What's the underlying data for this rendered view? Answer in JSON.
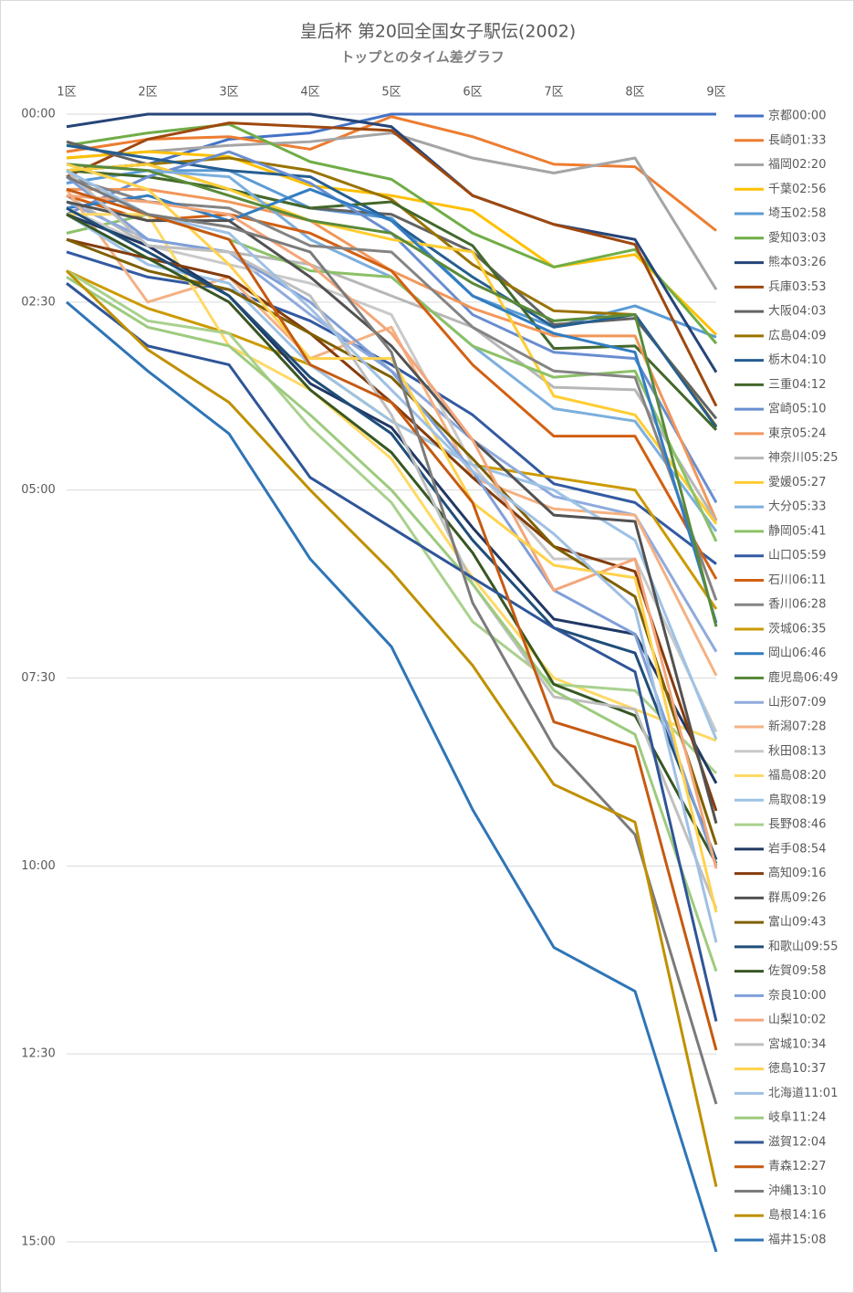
{
  "chart_data": {
    "type": "line",
    "title": "皇后杯 第20回全国女子駅伝(2002)",
    "subtitle": "トップとのタイム差グラフ",
    "categories": [
      "1区",
      "2区",
      "3区",
      "4区",
      "5区",
      "6区",
      "7区",
      "8区",
      "9区"
    ],
    "ylim": [
      0,
      900
    ],
    "y_reversed": true,
    "yticks": [
      {
        "value": 0,
        "label": "00:00"
      },
      {
        "value": 150,
        "label": "02:30"
      },
      {
        "value": 300,
        "label": "05:00"
      },
      {
        "value": 450,
        "label": "07:30"
      },
      {
        "value": 600,
        "label": "10:00"
      },
      {
        "value": 750,
        "label": "12:30"
      },
      {
        "value": 900,
        "label": "15:00"
      }
    ],
    "grid": true,
    "legend": "right",
    "series": [
      {
        "name": "京都00:00",
        "color": "#4472c4",
        "values": [
          45,
          40,
          20,
          15,
          0,
          0,
          0,
          0,
          0
        ]
      },
      {
        "name": "長崎01:33",
        "color": "#ed7d31",
        "values": [
          30,
          20,
          18,
          28,
          2,
          18,
          40,
          42,
          93
        ]
      },
      {
        "name": "福岡02:20",
        "color": "#a5a5a5",
        "values": [
          35,
          30,
          25,
          22,
          15,
          35,
          47,
          35,
          140
        ]
      },
      {
        "name": "千葉02:56",
        "color": "#ffc000",
        "values": [
          35,
          30,
          34,
          57,
          65,
          77,
          122,
          112,
          176
        ]
      },
      {
        "name": "埼玉02:58",
        "color": "#5b9bd5",
        "values": [
          55,
          45,
          45,
          75,
          83,
          145,
          170,
          153,
          178
        ]
      },
      {
        "name": "愛知03:03",
        "color": "#70ad47",
        "values": [
          25,
          15,
          8,
          38,
          52,
          95,
          122,
          108,
          183
        ]
      },
      {
        "name": "熊本03:26",
        "color": "#264478",
        "values": [
          10,
          0,
          0,
          0,
          10,
          65,
          88,
          100,
          206
        ]
      },
      {
        "name": "兵庫03:53",
        "color": "#9e480e",
        "values": [
          50,
          20,
          7,
          10,
          13,
          65,
          88,
          104,
          233
        ]
      },
      {
        "name": "大阪04:03",
        "color": "#636363",
        "values": [
          22,
          40,
          60,
          75,
          80,
          110,
          168,
          163,
          243
        ]
      },
      {
        "name": "広島04:09",
        "color": "#997300",
        "values": [
          45,
          40,
          35,
          45,
          68,
          120,
          157,
          160,
          249
        ]
      },
      {
        "name": "栃木04:10",
        "color": "#255e91",
        "values": [
          25,
          35,
          45,
          50,
          85,
          130,
          170,
          160,
          250
        ]
      },
      {
        "name": "三重04:12",
        "color": "#43682b",
        "values": [
          45,
          50,
          60,
          75,
          70,
          105,
          187,
          185,
          252
        ]
      },
      {
        "name": "宮崎05:10",
        "color": "#698ed0",
        "values": [
          80,
          50,
          30,
          55,
          95,
          160,
          190,
          195,
          310
        ]
      },
      {
        "name": "東京05:24",
        "color": "#f1975a",
        "values": [
          60,
          60,
          70,
          85,
          125,
          155,
          177,
          177,
          324
        ]
      },
      {
        "name": "神奈川05:25",
        "color": "#b7b7b7",
        "values": [
          65,
          105,
          110,
          120,
          145,
          170,
          218,
          220,
          325
        ]
      },
      {
        "name": "愛媛05:27",
        "color": "#ffcd33",
        "values": [
          45,
          40,
          60,
          85,
          100,
          110,
          225,
          240,
          327
        ]
      },
      {
        "name": "大分05:33",
        "color": "#7cafdd",
        "values": [
          40,
          45,
          50,
          100,
          130,
          185,
          235,
          245,
          333
        ]
      },
      {
        "name": "静岡05:41",
        "color": "#8cc168",
        "values": [
          95,
          80,
          100,
          125,
          130,
          185,
          210,
          205,
          341
        ]
      },
      {
        "name": "山口05:59",
        "color": "#335aa1",
        "values": [
          110,
          130,
          140,
          165,
          200,
          240,
          295,
          310,
          359
        ]
      },
      {
        "name": "石川06:11",
        "color": "#d26012",
        "values": [
          65,
          85,
          80,
          95,
          125,
          200,
          257,
          257,
          371
        ]
      },
      {
        "name": "香川06:28",
        "color": "#848484",
        "values": [
          50,
          70,
          75,
          105,
          110,
          170,
          205,
          210,
          388
        ]
      },
      {
        "name": "茨城06:35",
        "color": "#cc9a00",
        "values": [
          125,
          155,
          175,
          200,
          245,
          280,
          290,
          300,
          395
        ]
      },
      {
        "name": "岡山06:46",
        "color": "#327dc2",
        "values": [
          75,
          65,
          85,
          60,
          85,
          145,
          175,
          190,
          406
        ]
      },
      {
        "name": "鹿児島06:49",
        "color": "#5a8a39",
        "values": [
          40,
          45,
          65,
          85,
          95,
          135,
          165,
          160,
          409
        ]
      },
      {
        "name": "山形07:09",
        "color": "#8faadc",
        "values": [
          70,
          100,
          110,
          160,
          205,
          260,
          305,
          320,
          429
        ]
      },
      {
        "name": "新潟07:28",
        "color": "#f4b183",
        "values": [
          60,
          150,
          130,
          195,
          170,
          290,
          315,
          320,
          448
        ]
      },
      {
        "name": "秋田08:13",
        "color": "#c9c9c9",
        "values": [
          75,
          105,
          120,
          135,
          160,
          280,
          355,
          355,
          493
        ]
      },
      {
        "name": "福島08:20",
        "color": "#ffd966",
        "values": [
          80,
          80,
          185,
          220,
          275,
          370,
          450,
          475,
          500
        ]
      },
      {
        "name": "鳥取08:19",
        "color": "#9dc3e6",
        "values": [
          80,
          120,
          135,
          200,
          245,
          280,
          300,
          340,
          499
        ]
      },
      {
        "name": "長野08:46",
        "color": "#a9d18e",
        "values": [
          125,
          165,
          175,
          250,
          310,
          405,
          455,
          460,
          526
        ]
      },
      {
        "name": "岩手08:54",
        "color": "#203864",
        "values": [
          80,
          105,
          145,
          215,
          250,
          330,
          403,
          415,
          534
        ]
      },
      {
        "name": "高知09:16",
        "color": "#843c0c",
        "values": [
          100,
          115,
          130,
          175,
          230,
          290,
          345,
          365,
          556
        ]
      },
      {
        "name": "群馬09:26",
        "color": "#525252",
        "values": [
          70,
          85,
          85,
          130,
          185,
          260,
          320,
          325,
          566
        ]
      },
      {
        "name": "富山09:43",
        "color": "#7f6000",
        "values": [
          100,
          125,
          140,
          175,
          210,
          275,
          345,
          385,
          583
        ]
      },
      {
        "name": "和歌山09:55",
        "color": "#1f4e79",
        "values": [
          75,
          110,
          145,
          210,
          255,
          340,
          410,
          430,
          595
        ]
      },
      {
        "name": "佐賀09:58",
        "color": "#385723",
        "values": [
          80,
          115,
          150,
          220,
          270,
          350,
          455,
          480,
          598
        ]
      },
      {
        "name": "奈良10:00",
        "color": "#7f9fd8",
        "values": [
          50,
          100,
          110,
          150,
          205,
          285,
          380,
          415,
          600
        ]
      },
      {
        "name": "山梨10:02",
        "color": "#f4a67a",
        "values": [
          65,
          70,
          80,
          120,
          175,
          260,
          380,
          355,
          602
        ]
      },
      {
        "name": "宮城10:34",
        "color": "#bfbfbf",
        "values": [
          45,
          105,
          110,
          145,
          240,
          375,
          465,
          475,
          634
        ]
      },
      {
        "name": "徳島10:37",
        "color": "#ffd24d",
        "values": [
          40,
          60,
          120,
          195,
          195,
          310,
          360,
          370,
          637
        ]
      },
      {
        "name": "北海道11:01",
        "color": "#9fc0e3",
        "values": [
          45,
          80,
          95,
          155,
          220,
          285,
          335,
          395,
          661
        ]
      },
      {
        "name": "岐阜11:24",
        "color": "#9dcb7e",
        "values": [
          130,
          170,
          185,
          240,
          300,
          375,
          460,
          495,
          684
        ]
      },
      {
        "name": "滋賀12:04",
        "color": "#2f5597",
        "values": [
          135,
          185,
          200,
          290,
          330,
          370,
          410,
          445,
          724
        ]
      },
      {
        "name": "青森12:27",
        "color": "#c55a11",
        "values": [
          60,
          80,
          100,
          200,
          230,
          310,
          485,
          505,
          747
        ]
      },
      {
        "name": "沖縄13:10",
        "color": "#7b7b7b",
        "values": [
          50,
          80,
          90,
          110,
          190,
          390,
          505,
          575,
          790
        ]
      },
      {
        "name": "島根14:16",
        "color": "#bf9000",
        "values": [
          125,
          188,
          230,
          300,
          365,
          440,
          535,
          565,
          856
        ]
      },
      {
        "name": "福井15:08",
        "color": "#2e75b6",
        "values": [
          150,
          205,
          255,
          355,
          425,
          555,
          665,
          700,
          908
        ]
      }
    ]
  }
}
